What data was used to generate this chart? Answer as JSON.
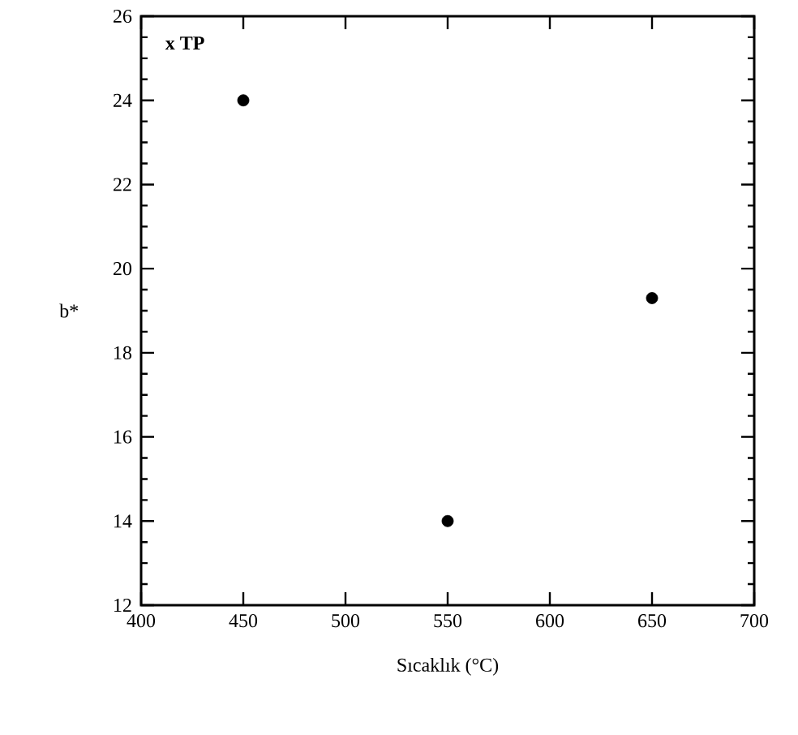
{
  "chart_data": {
    "type": "scatter",
    "xlabel": "Sıcaklık (°C)",
    "ylabel": "b*",
    "annotations": [
      "x TP"
    ],
    "x": [
      450,
      550,
      650
    ],
    "values": [
      24.0,
      14.0,
      19.3
    ],
    "color": "#000000",
    "marker": "circle",
    "xlim": [
      400,
      700
    ],
    "xticks": [
      400,
      450,
      500,
      550,
      600,
      650,
      700
    ],
    "ylim": [
      12,
      26
    ],
    "yticks": [
      12,
      14,
      16,
      18,
      20,
      22,
      24,
      26
    ],
    "grid": false
  }
}
